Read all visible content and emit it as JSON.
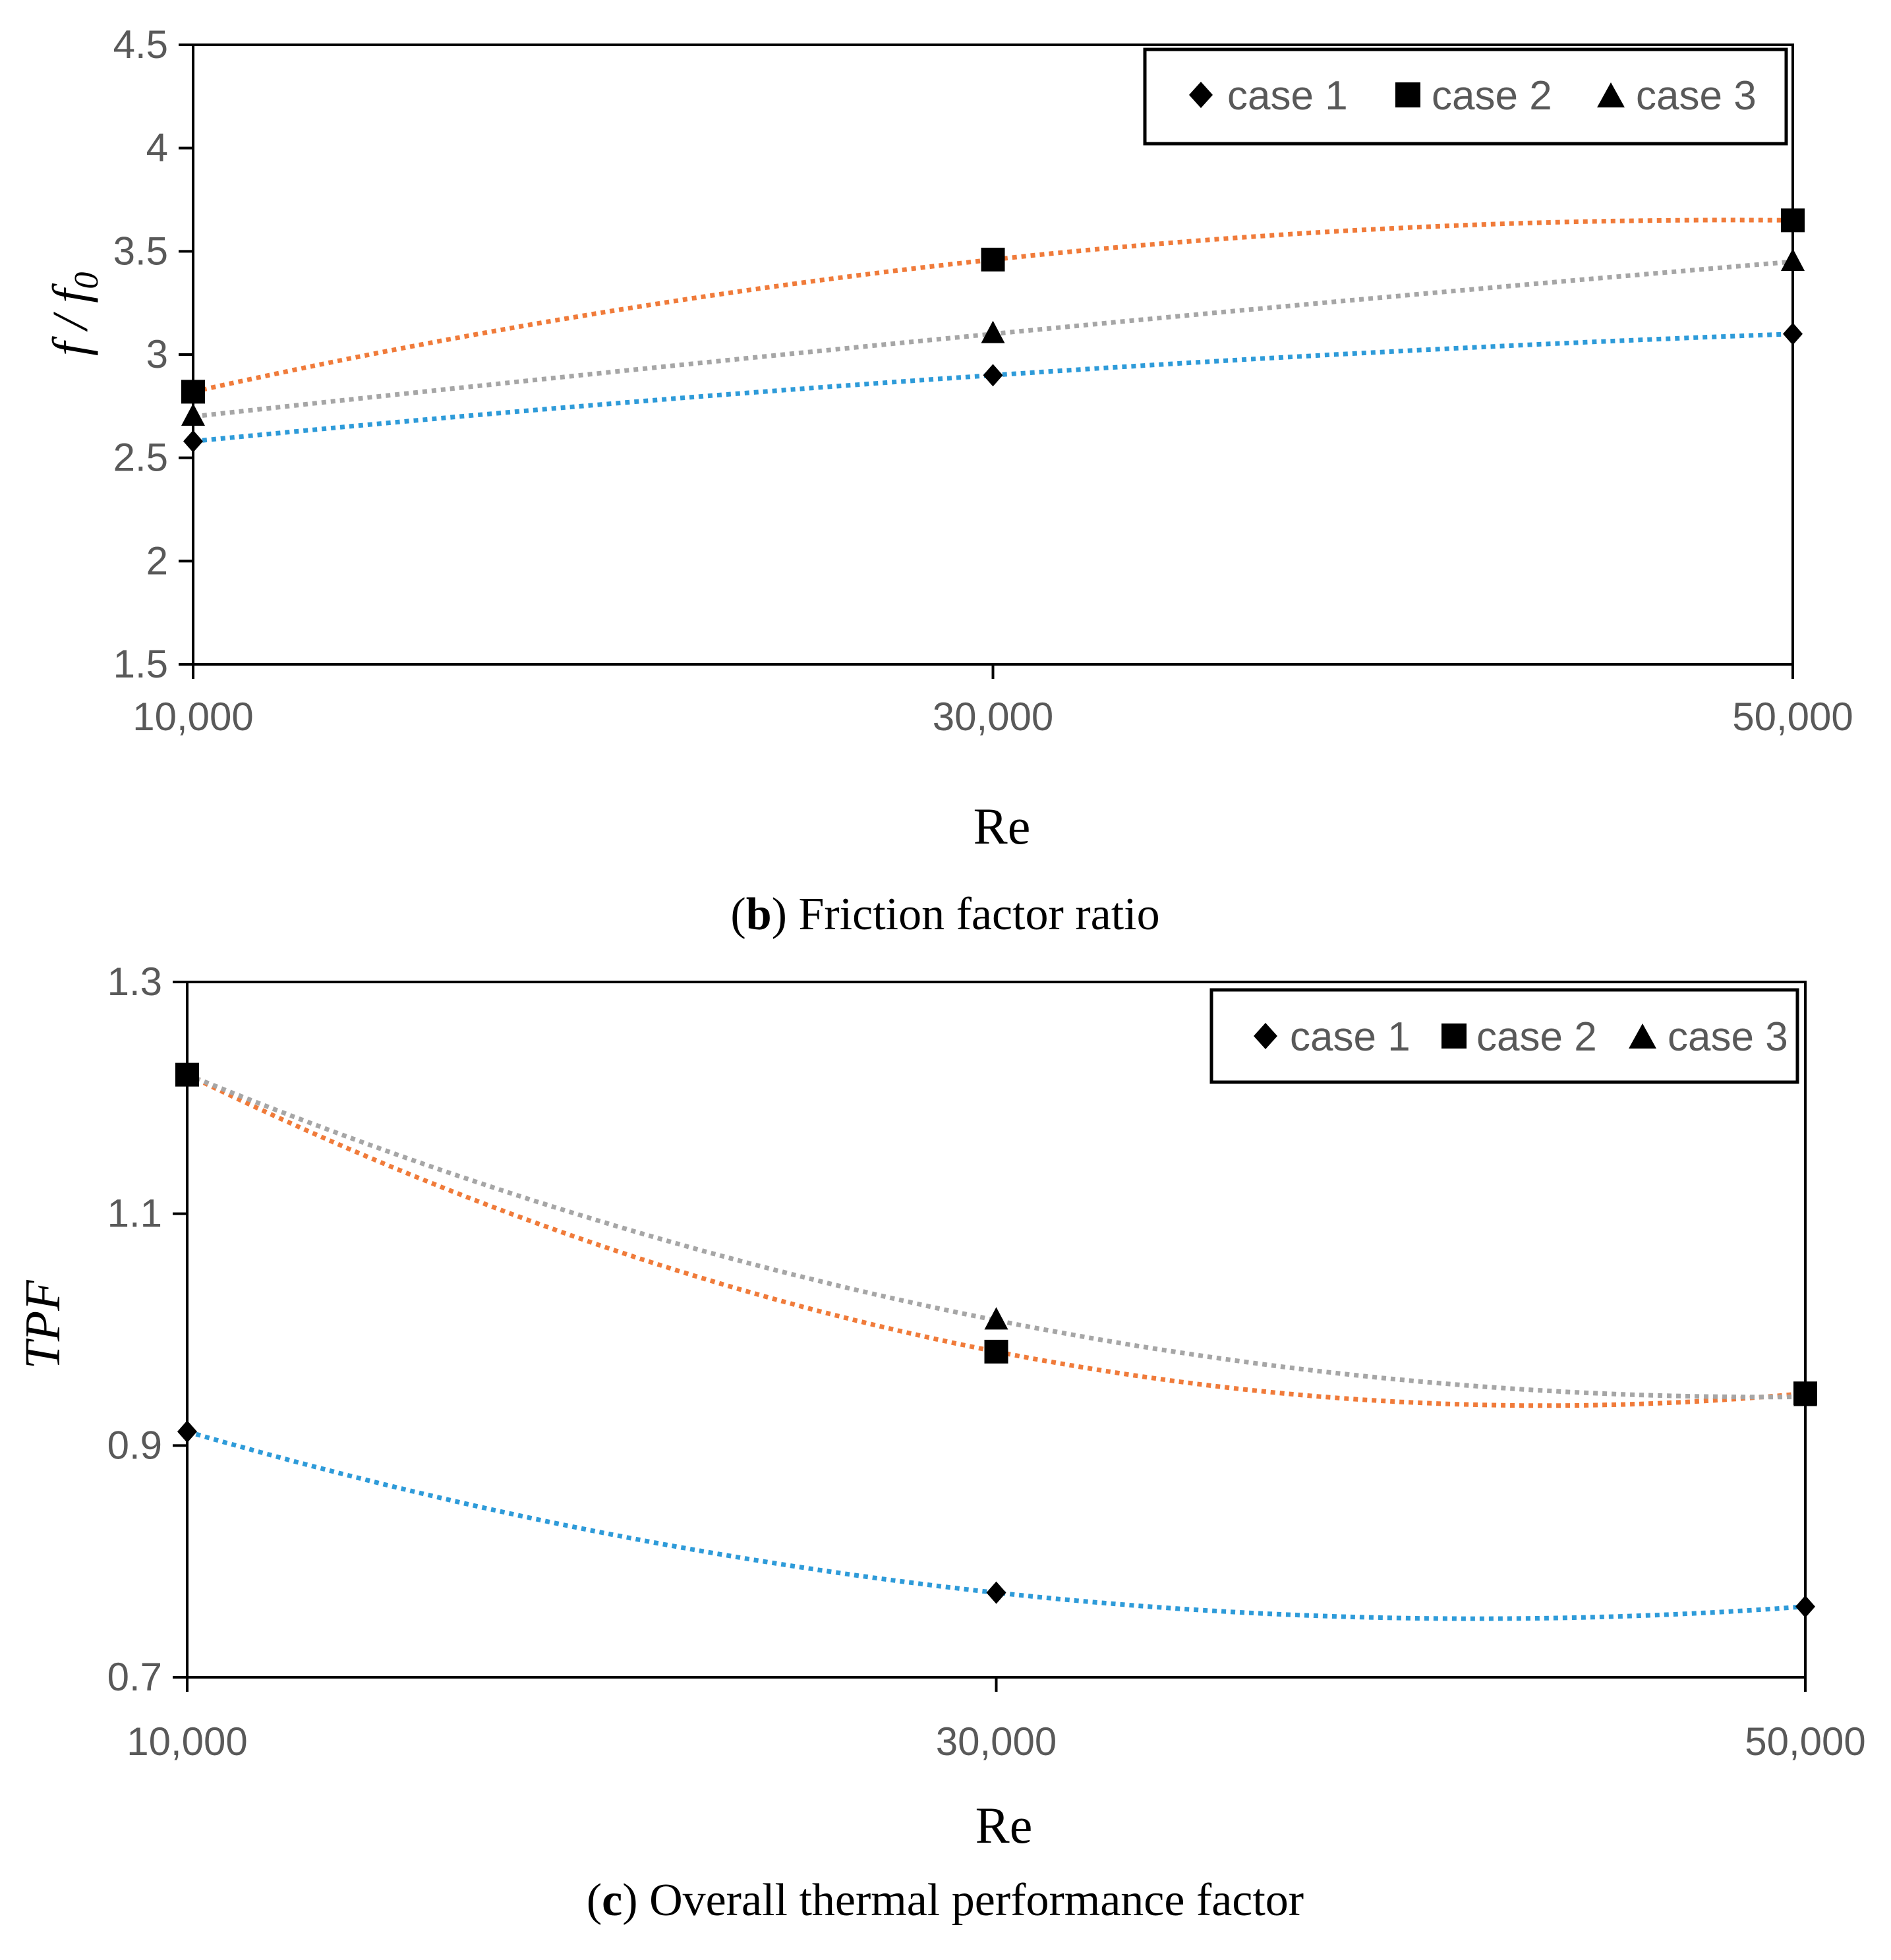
{
  "chart_data": [
    {
      "type": "line",
      "id": "b",
      "caption": {
        "open": "(",
        "letter": "b",
        "close": ")",
        "text": " Friction factor ratio"
      },
      "xlabel": "Re",
      "ylabel": {
        "main": "f / f",
        "sub": "0"
      },
      "x": [
        10000,
        30000,
        50000
      ],
      "x_tick_labels": [
        "10,000",
        "30,000",
        "50,000"
      ],
      "ylim": [
        1.5,
        4.5
      ],
      "y_ticks": [
        1.5,
        2,
        2.5,
        3,
        3.5,
        4,
        4.5
      ],
      "y_tick_labels": [
        "1.5",
        "2",
        "2.5",
        "3",
        "3.5",
        "4",
        "4.5"
      ],
      "grid": false,
      "legend_position": "top-right",
      "series": [
        {
          "name": "case 1",
          "marker": "diamond",
          "trend_color": "#2E9BD9",
          "values": [
            2.58,
            2.9,
            3.1
          ]
        },
        {
          "name": "case 2",
          "marker": "square",
          "trend_color": "#F07B3A",
          "values": [
            2.82,
            3.46,
            3.65
          ]
        },
        {
          "name": "case 3",
          "marker": "triangle",
          "trend_color": "#A6A6A6",
          "values": [
            2.7,
            3.1,
            3.45
          ]
        }
      ]
    },
    {
      "type": "line",
      "id": "c",
      "caption": {
        "open": "(",
        "letter": "c",
        "close": ")",
        "text": " Overall thermal performance factor"
      },
      "xlabel": "Re",
      "ylabel": {
        "main": "TPF",
        "sub": ""
      },
      "x": [
        10000,
        30000,
        50000
      ],
      "x_tick_labels": [
        "10,000",
        "30,000",
        "50,000"
      ],
      "ylim": [
        0.7,
        1.3
      ],
      "y_ticks": [
        0.7,
        0.9,
        1.1,
        1.3
      ],
      "y_tick_labels": [
        "0.7",
        "0.9",
        "1.1",
        "1.3"
      ],
      "grid": false,
      "legend_position": "top-right",
      "series": [
        {
          "name": "case 1",
          "marker": "diamond",
          "trend_color": "#2E9BD9",
          "values": [
            0.912,
            0.773,
            0.761
          ]
        },
        {
          "name": "case 2",
          "marker": "square",
          "trend_color": "#F07B3A",
          "values": [
            1.22,
            0.981,
            0.945
          ]
        },
        {
          "name": "case 3",
          "marker": "triangle",
          "trend_color": "#A6A6A6",
          "values": [
            1.22,
            1.008,
            0.942
          ]
        }
      ]
    }
  ]
}
